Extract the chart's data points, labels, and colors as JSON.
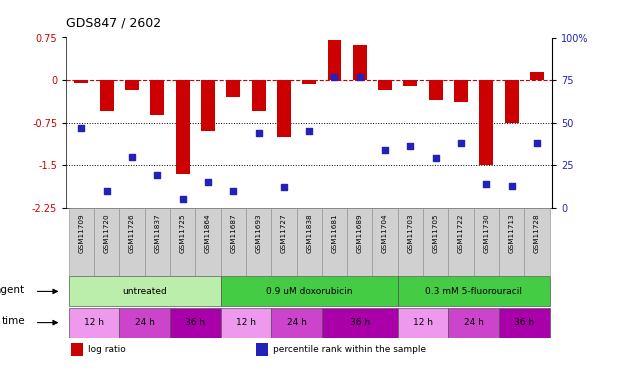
{
  "title": "GDS847 / 2602",
  "samples": [
    "GSM11709",
    "GSM11720",
    "GSM11726",
    "GSM11837",
    "GSM11725",
    "GSM11864",
    "GSM11687",
    "GSM11693",
    "GSM11727",
    "GSM11838",
    "GSM11681",
    "GSM11689",
    "GSM11704",
    "GSM11703",
    "GSM11705",
    "GSM11722",
    "GSM11730",
    "GSM11713",
    "GSM11728"
  ],
  "log_ratio": [
    -0.05,
    -0.55,
    -0.18,
    -0.62,
    -1.65,
    -0.9,
    -0.3,
    -0.55,
    -1.0,
    -0.07,
    0.7,
    0.62,
    -0.18,
    -0.1,
    -0.35,
    -0.38,
    -1.5,
    -0.75,
    0.15
  ],
  "pct_rank": [
    47,
    10,
    30,
    19,
    5,
    15,
    10,
    44,
    12,
    45,
    77,
    77,
    34,
    36,
    29,
    38,
    14,
    13,
    38
  ],
  "ylim_left": [
    -2.25,
    0.75
  ],
  "ylim_right": [
    0,
    100
  ],
  "hline_y": [
    -0.75,
    -1.5
  ],
  "bar_color": "#cc0000",
  "dot_color": "#2222bb",
  "zero_line_color": "#cc0000",
  "agent_colors": [
    "#bbeeaa",
    "#44cc44",
    "#44cc44"
  ],
  "agent_ranges": [
    [
      0,
      6
    ],
    [
      6,
      13
    ],
    [
      13,
      19
    ]
  ],
  "agent_labels": [
    "untreated",
    "0.9 uM doxorubicin",
    "0.3 mM 5-fluorouracil"
  ],
  "time_colors": [
    "#ee99ee",
    "#cc44cc",
    "#aa00aa",
    "#ee99ee",
    "#cc44cc",
    "#aa00aa",
    "#ee99ee",
    "#cc44cc",
    "#aa00aa"
  ],
  "time_ranges": [
    [
      0,
      2
    ],
    [
      2,
      4
    ],
    [
      4,
      6
    ],
    [
      6,
      8
    ],
    [
      8,
      10
    ],
    [
      10,
      13
    ],
    [
      13,
      15
    ],
    [
      15,
      17
    ],
    [
      17,
      19
    ]
  ],
  "time_labels": [
    "12 h",
    "24 h",
    "36 h",
    "12 h",
    "24 h",
    "36 h",
    "12 h",
    "24 h",
    "36 h"
  ],
  "legend_items": [
    {
      "label": "log ratio",
      "color": "#cc0000"
    },
    {
      "label": "percentile rank within the sample",
      "color": "#2222bb"
    }
  ],
  "yticks_left": [
    0.75,
    0,
    -0.75,
    -1.5,
    -2.25
  ],
  "ytick_labels_left": [
    "0.75",
    "0",
    "-0.75",
    "-1.5",
    "-2.25"
  ],
  "yticks_right": [
    0,
    25,
    50,
    75,
    100
  ],
  "ytick_labels_right": [
    "0",
    "25",
    "50",
    "75",
    "100%"
  ]
}
